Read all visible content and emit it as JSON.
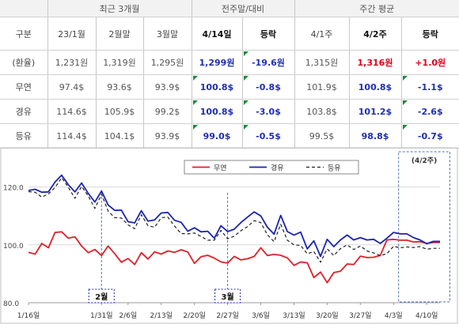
{
  "table": {
    "group_headers": [
      "최근 3개월",
      "전주말/대비",
      "주간 평균"
    ],
    "col_headers": [
      "구분",
      "23/1월",
      "2월말",
      "3월말",
      "4/14일",
      "등락",
      "4/1주",
      "4/2주",
      "등락"
    ],
    "rows": [
      {
        "label": "(환율)",
        "values": [
          "1,231원",
          "1,319원",
          "1,295원",
          "1,299원",
          "-19.6원",
          "1,315원",
          "1,316원",
          "+1.0원"
        ]
      },
      {
        "label": "무연",
        "values": [
          "97.4$",
          "93.6$",
          "93.9$",
          "100.8$",
          "-0.8$",
          "101.9$",
          "100.8$",
          "-1.1$"
        ]
      },
      {
        "label": "경유",
        "values": [
          "114.6$",
          "105.9$",
          "99.2$",
          "100.8$",
          "-3.0$",
          "103.8$",
          "101.2$",
          "-2.6$"
        ]
      },
      {
        "label": "등유",
        "values": [
          "114.4$",
          "104.1$",
          "93.9$",
          "99.0$",
          "-0.5$",
          "99.5$",
          "98.8$",
          "-0.7$"
        ]
      }
    ]
  },
  "chart_data": {
    "type": "line",
    "ylim": [
      80,
      130
    ],
    "yticks": [
      "120.0",
      "100.0",
      "80.0"
    ],
    "x_tick_labels": [
      "1/16일",
      "1/31일",
      "2/6일",
      "2/13일",
      "2/20일",
      "2/27일",
      "3/6일",
      "3/13일",
      "3/20일",
      "3/27일",
      "4/3일",
      "4/10일"
    ],
    "x_tick_index": [
      0,
      11,
      15,
      20,
      25,
      30,
      35,
      40,
      45,
      50,
      55,
      60
    ],
    "annotations": [
      {
        "label": "2월",
        "index": 11
      },
      {
        "label": "3월",
        "index": 30
      },
      {
        "label": "(4/2주)",
        "start": 56,
        "end": 63
      }
    ],
    "legend_position": "top-center",
    "series": [
      {
        "name": "무연",
        "color": "#e0202a",
        "dash": "",
        "values": [
          97.4,
          96.8,
          100.5,
          99.0,
          104.3,
          104.5,
          102.3,
          102.8,
          99.6,
          97.3,
          98.4,
          96.3,
          99.6,
          96.9,
          94.0,
          95.3,
          93.2,
          97.3,
          95.1,
          97.6,
          96.8,
          97.9,
          97.4,
          98.3,
          97.5,
          93.6,
          95.9,
          96.4,
          95.4,
          94.1,
          93.7,
          96.0,
          94.8,
          95.2,
          96.0,
          99.0,
          96.3,
          96.7,
          96.4,
          95.5,
          92.9,
          94.1,
          93.8,
          88.7,
          90.6,
          86.9,
          90.4,
          90.9,
          93.4,
          93.2,
          96.1,
          95.6,
          95.7,
          96.3,
          101.7,
          101.9,
          101.6,
          101.6,
          101.0,
          101.1,
          100.5,
          100.8,
          100.8
        ]
      },
      {
        "name": "경유",
        "color": "#1a25b0",
        "dash": "",
        "values": [
          118.8,
          119.2,
          118.2,
          118.3,
          121.7,
          124.1,
          120.8,
          118.3,
          121.4,
          117.8,
          114.8,
          118.6,
          113.8,
          111.9,
          112.0,
          108.0,
          107.6,
          111.8,
          108.2,
          108.6,
          111.0,
          111.2,
          108.5,
          107.8,
          104.7,
          105.9,
          104.5,
          104.7,
          102.3,
          106.6,
          104.6,
          105.4,
          107.7,
          109.6,
          111.4,
          110.0,
          106.1,
          103.7,
          110.2,
          104.6,
          103.4,
          104.4,
          98.6,
          101.4,
          96.0,
          101.9,
          99.4,
          101.7,
          103.4,
          101.7,
          102.5,
          101.7,
          101.9,
          100.5,
          102.3,
          104.3,
          103.8,
          103.8,
          102.5,
          101.7,
          100.4,
          101.2,
          101.2
        ]
      },
      {
        "name": "등유",
        "color": "#222222",
        "dash": "4,3",
        "values": [
          118.4,
          118.2,
          116.5,
          117.6,
          119.8,
          123.2,
          119.9,
          116.1,
          120.2,
          116.9,
          112.6,
          117.5,
          111.7,
          109.4,
          109.3,
          106.9,
          105.6,
          110.4,
          106.6,
          106.1,
          109.4,
          109.6,
          106.5,
          103.9,
          103.8,
          104.1,
          102.9,
          101.6,
          101.6,
          105.0,
          102.1,
          103.0,
          104.9,
          106.3,
          108.4,
          107.7,
          103.5,
          101.1,
          107.1,
          101.6,
          100.0,
          99.8,
          96.9,
          97.7,
          94.0,
          98.6,
          96.3,
          98.7,
          100.0,
          98.4,
          99.6,
          97.9,
          97.2,
          96.3,
          96.9,
          99.5,
          99.0,
          99.3,
          99.1,
          99.4,
          98.5,
          98.8,
          98.8
        ]
      }
    ]
  }
}
